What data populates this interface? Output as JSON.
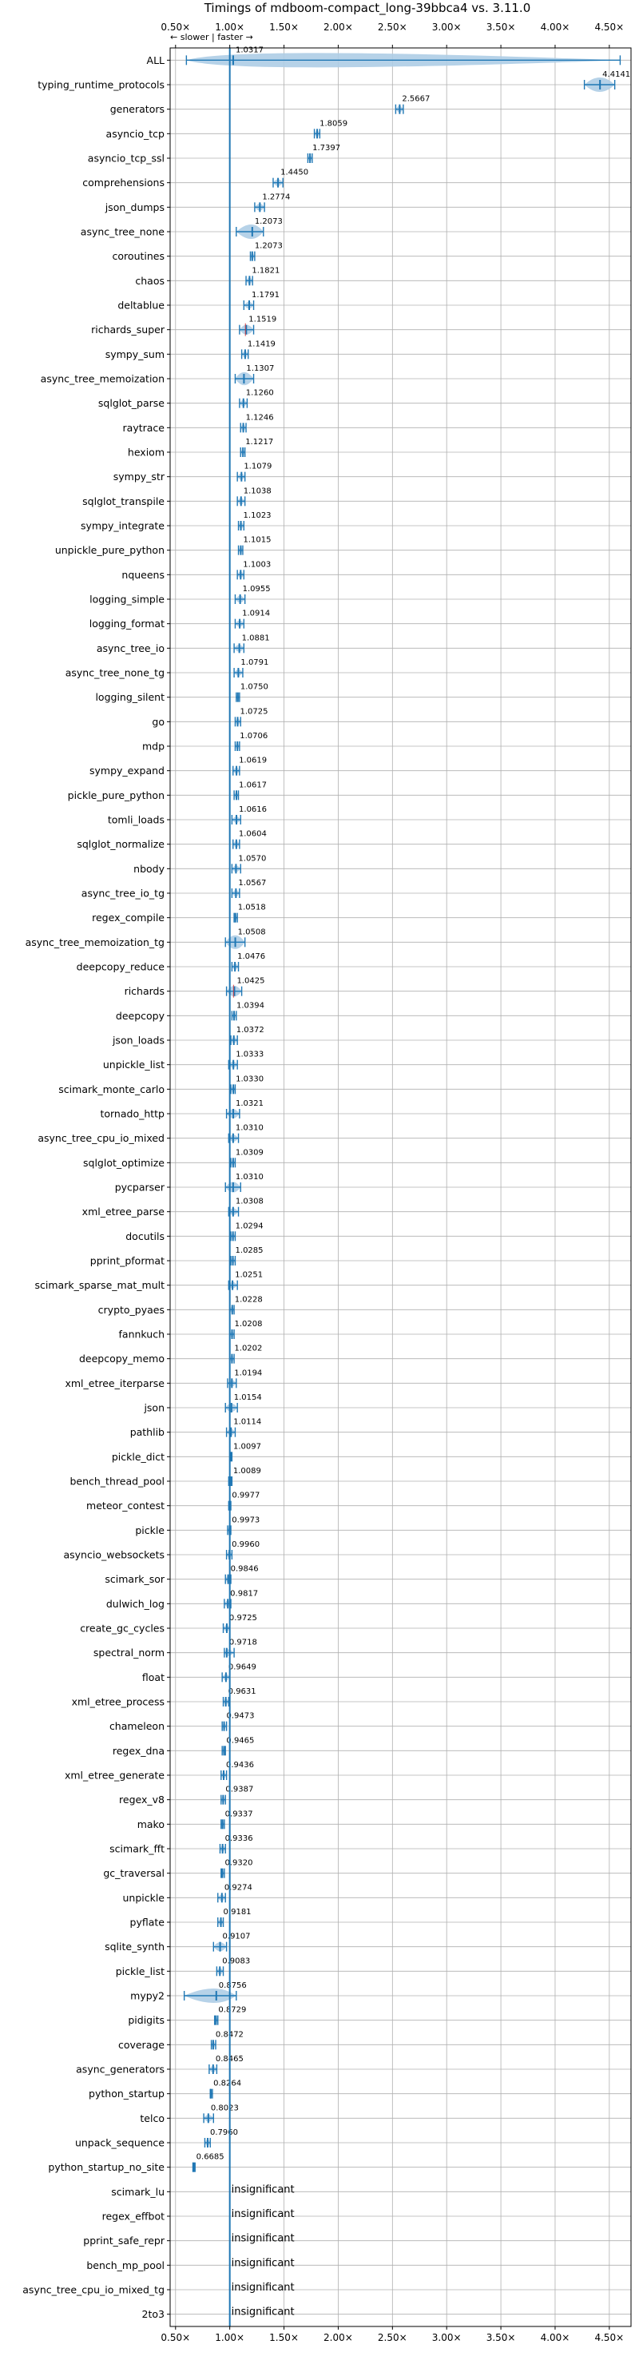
{
  "chart_data": {
    "type": "violin",
    "title": "Timings of mdboom-compact_long-39bbca4 vs. 3.11.0",
    "direction_note": "← slower | faster →",
    "x_scale": "linear",
    "x_range": [
      0.45,
      4.7
    ],
    "x_ticks": [
      0.5,
      1.0,
      1.5,
      2.0,
      2.5,
      3.0,
      3.5,
      4.0,
      4.5
    ],
    "x_tick_labels": [
      "0.50×",
      "1.00×",
      "1.50×",
      "2.00×",
      "2.50×",
      "3.00×",
      "3.50×",
      "4.00×",
      "4.50×"
    ],
    "reference_line": 1.0,
    "grid": true,
    "colors": {
      "significant": "#1f77b4",
      "insignificant_mark": "#d62728",
      "violin_fill": "#aecde6"
    },
    "rows": [
      {
        "label": "ALL",
        "value": 1.0317,
        "annotation": "1.0317",
        "min": 0.6,
        "max": 4.6
      },
      {
        "label": "typing_runtime_protocols",
        "value": 4.4141,
        "annotation": "4.4141",
        "min": 4.27,
        "max": 4.55
      },
      {
        "label": "generators",
        "value": 2.5667,
        "annotation": "2.5667",
        "min": 2.53,
        "max": 2.6
      },
      {
        "label": "asyncio_tcp",
        "value": 1.8059,
        "annotation": "1.8059",
        "min": 1.78,
        "max": 1.83
      },
      {
        "label": "asyncio_tcp_ssl",
        "value": 1.7397,
        "annotation": "1.7397",
        "min": 1.72,
        "max": 1.76
      },
      {
        "label": "comprehensions",
        "value": 1.445,
        "annotation": "1.4450",
        "min": 1.4,
        "max": 1.49
      },
      {
        "label": "json_dumps",
        "value": 1.2774,
        "annotation": "1.2774",
        "min": 1.23,
        "max": 1.32
      },
      {
        "label": "async_tree_none",
        "value": 1.2073,
        "annotation": "1.2073",
        "min": 1.06,
        "max": 1.31
      },
      {
        "label": "coroutines",
        "value": 1.2073,
        "annotation": "1.2073",
        "min": 1.19,
        "max": 1.23
      },
      {
        "label": "chaos",
        "value": 1.1821,
        "annotation": "1.1821",
        "min": 1.15,
        "max": 1.21
      },
      {
        "label": "deltablue",
        "value": 1.1791,
        "annotation": "1.1791",
        "min": 1.13,
        "max": 1.22
      },
      {
        "label": "richards_super",
        "value": 1.1519,
        "annotation": "1.1519",
        "min": 1.09,
        "max": 1.22
      },
      {
        "label": "sympy_sum",
        "value": 1.1419,
        "annotation": "1.1419",
        "min": 1.11,
        "max": 1.17
      },
      {
        "label": "async_tree_memoization",
        "value": 1.1307,
        "annotation": "1.1307",
        "min": 1.05,
        "max": 1.22
      },
      {
        "label": "sqlglot_parse",
        "value": 1.126,
        "annotation": "1.1260",
        "min": 1.09,
        "max": 1.16
      },
      {
        "label": "raytrace",
        "value": 1.1246,
        "annotation": "1.1246",
        "min": 1.1,
        "max": 1.15
      },
      {
        "label": "hexiom",
        "value": 1.1217,
        "annotation": "1.1217",
        "min": 1.1,
        "max": 1.14
      },
      {
        "label": "sympy_str",
        "value": 1.1079,
        "annotation": "1.1079",
        "min": 1.07,
        "max": 1.14
      },
      {
        "label": "sqlglot_transpile",
        "value": 1.1038,
        "annotation": "1.1038",
        "min": 1.07,
        "max": 1.14
      },
      {
        "label": "sympy_integrate",
        "value": 1.1023,
        "annotation": "1.1023",
        "min": 1.08,
        "max": 1.13
      },
      {
        "label": "unpickle_pure_python",
        "value": 1.1015,
        "annotation": "1.1015",
        "min": 1.08,
        "max": 1.12
      },
      {
        "label": "nqueens",
        "value": 1.1003,
        "annotation": "1.1003",
        "min": 1.07,
        "max": 1.13
      },
      {
        "label": "logging_simple",
        "value": 1.0955,
        "annotation": "1.0955",
        "min": 1.05,
        "max": 1.14
      },
      {
        "label": "logging_format",
        "value": 1.0914,
        "annotation": "1.0914",
        "min": 1.05,
        "max": 1.13
      },
      {
        "label": "async_tree_io",
        "value": 1.0881,
        "annotation": "1.0881",
        "min": 1.04,
        "max": 1.13
      },
      {
        "label": "async_tree_none_tg",
        "value": 1.0791,
        "annotation": "1.0791",
        "min": 1.04,
        "max": 1.12
      },
      {
        "label": "logging_silent",
        "value": 1.075,
        "annotation": "1.0750",
        "min": 1.06,
        "max": 1.09
      },
      {
        "label": "go",
        "value": 1.0725,
        "annotation": "1.0725",
        "min": 1.05,
        "max": 1.1
      },
      {
        "label": "mdp",
        "value": 1.0706,
        "annotation": "1.0706",
        "min": 1.05,
        "max": 1.09
      },
      {
        "label": "sympy_expand",
        "value": 1.0619,
        "annotation": "1.0619",
        "min": 1.03,
        "max": 1.09
      },
      {
        "label": "pickle_pure_python",
        "value": 1.0617,
        "annotation": "1.0617",
        "min": 1.04,
        "max": 1.08
      },
      {
        "label": "tomli_loads",
        "value": 1.0616,
        "annotation": "1.0616",
        "min": 1.02,
        "max": 1.1
      },
      {
        "label": "sqlglot_normalize",
        "value": 1.0604,
        "annotation": "1.0604",
        "min": 1.03,
        "max": 1.09
      },
      {
        "label": "nbody",
        "value": 1.057,
        "annotation": "1.0570",
        "min": 1.02,
        "max": 1.1
      },
      {
        "label": "async_tree_io_tg",
        "value": 1.0567,
        "annotation": "1.0567",
        "min": 1.02,
        "max": 1.09
      },
      {
        "label": "regex_compile",
        "value": 1.0518,
        "annotation": "1.0518",
        "min": 1.04,
        "max": 1.07
      },
      {
        "label": "async_tree_memoization_tg",
        "value": 1.0508,
        "annotation": "1.0508",
        "min": 0.96,
        "max": 1.14
      },
      {
        "label": "deepcopy_reduce",
        "value": 1.0476,
        "annotation": "1.0476",
        "min": 1.02,
        "max": 1.08
      },
      {
        "label": "richards",
        "value": 1.0425,
        "annotation": "1.0425",
        "min": 0.97,
        "max": 1.11
      },
      {
        "label": "deepcopy",
        "value": 1.0394,
        "annotation": "1.0394",
        "min": 1.02,
        "max": 1.06
      },
      {
        "label": "json_loads",
        "value": 1.0372,
        "annotation": "1.0372",
        "min": 1.01,
        "max": 1.07
      },
      {
        "label": "unpickle_list",
        "value": 1.0333,
        "annotation": "1.0333",
        "min": 0.99,
        "max": 1.07
      },
      {
        "label": "scimark_monte_carlo",
        "value": 1.033,
        "annotation": "1.0330",
        "min": 1.01,
        "max": 1.05
      },
      {
        "label": "tornado_http",
        "value": 1.0321,
        "annotation": "1.0321",
        "min": 0.97,
        "max": 1.09
      },
      {
        "label": "async_tree_cpu_io_mixed",
        "value": 1.031,
        "annotation": "1.0310",
        "min": 0.99,
        "max": 1.08
      },
      {
        "label": "sqlglot_optimize",
        "value": 1.0309,
        "annotation": "1.0309",
        "min": 1.01,
        "max": 1.05
      },
      {
        "label": "pycparser",
        "value": 1.031,
        "annotation": "1.0310",
        "min": 0.96,
        "max": 1.1
      },
      {
        "label": "xml_etree_parse",
        "value": 1.0308,
        "annotation": "1.0308",
        "min": 0.99,
        "max": 1.08
      },
      {
        "label": "docutils",
        "value": 1.0294,
        "annotation": "1.0294",
        "min": 1.01,
        "max": 1.05
      },
      {
        "label": "pprint_pformat",
        "value": 1.0285,
        "annotation": "1.0285",
        "min": 1.01,
        "max": 1.05
      },
      {
        "label": "scimark_sparse_mat_mult",
        "value": 1.0251,
        "annotation": "1.0251",
        "min": 0.99,
        "max": 1.07
      },
      {
        "label": "crypto_pyaes",
        "value": 1.0228,
        "annotation": "1.0228",
        "min": 1.0,
        "max": 1.04
      },
      {
        "label": "fannkuch",
        "value": 1.0208,
        "annotation": "1.0208",
        "min": 1.0,
        "max": 1.04
      },
      {
        "label": "deepcopy_memo",
        "value": 1.0202,
        "annotation": "1.0202",
        "min": 1.0,
        "max": 1.04
      },
      {
        "label": "xml_etree_iterparse",
        "value": 1.0194,
        "annotation": "1.0194",
        "min": 0.98,
        "max": 1.06
      },
      {
        "label": "json",
        "value": 1.0154,
        "annotation": "1.0154",
        "min": 0.96,
        "max": 1.07
      },
      {
        "label": "pathlib",
        "value": 1.0114,
        "annotation": "1.0114",
        "min": 0.97,
        "max": 1.05
      },
      {
        "label": "pickle_dict",
        "value": 1.0097,
        "annotation": "1.0097",
        "min": 1.0,
        "max": 1.02
      },
      {
        "label": "bench_thread_pool",
        "value": 1.0089,
        "annotation": "1.0089",
        "min": 0.99,
        "max": 1.02
      },
      {
        "label": "meteor_contest",
        "value": 0.9977,
        "annotation": "0.9977",
        "min": 0.99,
        "max": 1.01
      },
      {
        "label": "pickle",
        "value": 0.9973,
        "annotation": "0.9973",
        "min": 0.98,
        "max": 1.01
      },
      {
        "label": "asyncio_websockets",
        "value": 0.996,
        "annotation": "0.9960",
        "min": 0.97,
        "max": 1.02
      },
      {
        "label": "scimark_sor",
        "value": 0.9846,
        "annotation": "0.9846",
        "min": 0.96,
        "max": 1.01
      },
      {
        "label": "dulwich_log",
        "value": 0.9817,
        "annotation": "0.9817",
        "min": 0.95,
        "max": 1.01
      },
      {
        "label": "create_gc_cycles",
        "value": 0.9725,
        "annotation": "0.9725",
        "min": 0.94,
        "max": 1.0
      },
      {
        "label": "spectral_norm",
        "value": 0.9718,
        "annotation": "0.9718",
        "min": 0.95,
        "max": 1.04
      },
      {
        "label": "float",
        "value": 0.9649,
        "annotation": "0.9649",
        "min": 0.93,
        "max": 1.0
      },
      {
        "label": "xml_etree_process",
        "value": 0.9631,
        "annotation": "0.9631",
        "min": 0.94,
        "max": 0.99
      },
      {
        "label": "chameleon",
        "value": 0.9473,
        "annotation": "0.9473",
        "min": 0.93,
        "max": 0.97
      },
      {
        "label": "regex_dna",
        "value": 0.9465,
        "annotation": "0.9465",
        "min": 0.93,
        "max": 0.96
      },
      {
        "label": "xml_etree_generate",
        "value": 0.9436,
        "annotation": "0.9436",
        "min": 0.92,
        "max": 0.97
      },
      {
        "label": "regex_v8",
        "value": 0.9387,
        "annotation": "0.9387",
        "min": 0.92,
        "max": 0.96
      },
      {
        "label": "mako",
        "value": 0.9337,
        "annotation": "0.9337",
        "min": 0.92,
        "max": 0.95
      },
      {
        "label": "scimark_fft",
        "value": 0.9336,
        "annotation": "0.9336",
        "min": 0.91,
        "max": 0.96
      },
      {
        "label": "gc_traversal",
        "value": 0.932,
        "annotation": "0.9320",
        "min": 0.92,
        "max": 0.95
      },
      {
        "label": "unpickle",
        "value": 0.9274,
        "annotation": "0.9274",
        "min": 0.89,
        "max": 0.96
      },
      {
        "label": "pyflate",
        "value": 0.9181,
        "annotation": "0.9181",
        "min": 0.89,
        "max": 0.94
      },
      {
        "label": "sqlite_synth",
        "value": 0.9107,
        "annotation": "0.9107",
        "min": 0.85,
        "max": 0.97
      },
      {
        "label": "pickle_list",
        "value": 0.9083,
        "annotation": "0.9083",
        "min": 0.88,
        "max": 0.94
      },
      {
        "label": "mypy2",
        "value": 0.8756,
        "annotation": "0.8756",
        "min": 0.58,
        "max": 1.06
      },
      {
        "label": "pidigits",
        "value": 0.8729,
        "annotation": "0.8729",
        "min": 0.86,
        "max": 0.89
      },
      {
        "label": "coverage",
        "value": 0.8472,
        "annotation": "0.8472",
        "min": 0.83,
        "max": 0.87
      },
      {
        "label": "async_generators",
        "value": 0.8465,
        "annotation": "0.8465",
        "min": 0.81,
        "max": 0.88
      },
      {
        "label": "python_startup",
        "value": 0.8264,
        "annotation": "0.8264",
        "min": 0.82,
        "max": 0.84
      },
      {
        "label": "telco",
        "value": 0.8023,
        "annotation": "0.8023",
        "min": 0.76,
        "max": 0.85
      },
      {
        "label": "unpack_sequence",
        "value": 0.796,
        "annotation": "0.7960",
        "min": 0.77,
        "max": 0.82
      },
      {
        "label": "python_startup_no_site",
        "value": 0.6685,
        "annotation": "0.6685",
        "min": 0.66,
        "max": 0.68
      },
      {
        "label": "scimark_lu",
        "value": null,
        "annotation": "insignificant"
      },
      {
        "label": "regex_effbot",
        "value": null,
        "annotation": "insignificant"
      },
      {
        "label": "pprint_safe_repr",
        "value": null,
        "annotation": "insignificant"
      },
      {
        "label": "bench_mp_pool",
        "value": null,
        "annotation": "insignificant"
      },
      {
        "label": "async_tree_cpu_io_mixed_tg",
        "value": null,
        "annotation": "insignificant"
      },
      {
        "label": "2to3",
        "value": null,
        "annotation": "insignificant"
      }
    ],
    "red_marked_rows": [
      "richards_super",
      "richards"
    ]
  }
}
